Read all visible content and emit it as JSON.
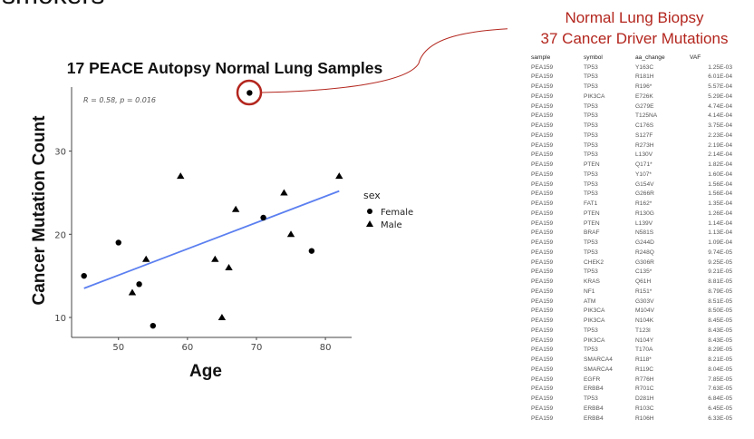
{
  "heading_partial": "smokers",
  "annotation": {
    "line1": "Normal Lung Biopsy",
    "line2": "37 Cancer Driver Mutations",
    "color": "#b3261e"
  },
  "chart_data": {
    "type": "scatter",
    "title": "17 PEACE Autopsy Normal Lung Samples",
    "xlabel": "Age",
    "ylabel": "Cancer Mutation Count",
    "xlim": [
      43.2,
      83.8
    ],
    "ylim": [
      7.6,
      37.7
    ],
    "xticks": [
      50,
      60,
      70,
      80
    ],
    "yticks": [
      10,
      20,
      30
    ],
    "grid": false,
    "stat_label": "R = 0.58, p = 0.016",
    "legend": {
      "title": "sex",
      "placement": "right"
    },
    "series": [
      {
        "name": "Female",
        "marker": "circle",
        "x": [
          45,
          50,
          53,
          55,
          69,
          71,
          78
        ],
        "y": [
          15,
          19,
          14,
          9,
          37,
          22,
          18
        ]
      },
      {
        "name": "Male",
        "marker": "triangle",
        "x": [
          52,
          54,
          59,
          64,
          65,
          66,
          67,
          74,
          75,
          82
        ],
        "y": [
          13,
          17,
          27,
          17,
          10,
          16,
          23,
          25,
          20,
          27
        ]
      }
    ],
    "fit_line": {
      "x": [
        45,
        82
      ],
      "y": [
        13.5,
        25.2
      ],
      "color": "#5b7ff0"
    },
    "highlighted_point": {
      "x": 69,
      "y": 37,
      "color": "#b3261e"
    }
  },
  "table": {
    "columns": [
      "sample",
      "symbol",
      "aa_change",
      "VAF"
    ],
    "rows": [
      [
        "PEA159",
        "TP53",
        "Y163C",
        "1.25E-03"
      ],
      [
        "PEA159",
        "TP53",
        "R181H",
        "6.01E-04"
      ],
      [
        "PEA159",
        "TP53",
        "R196*",
        "5.57E-04"
      ],
      [
        "PEA159",
        "PIK3CA",
        "E726K",
        "5.29E-04"
      ],
      [
        "PEA159",
        "TP53",
        "G279E",
        "4.74E-04"
      ],
      [
        "PEA159",
        "TP53",
        "T125NA",
        "4.14E-04"
      ],
      [
        "PEA159",
        "TP53",
        "C176S",
        "3.75E-04"
      ],
      [
        "PEA159",
        "TP53",
        "S127F",
        "2.23E-04"
      ],
      [
        "PEA159",
        "TP53",
        "R273H",
        "2.19E-04"
      ],
      [
        "PEA159",
        "TP53",
        "L130V",
        "2.14E-04"
      ],
      [
        "PEA159",
        "PTEN",
        "Q171*",
        "1.82E-04"
      ],
      [
        "PEA159",
        "TP53",
        "Y107*",
        "1.60E-04"
      ],
      [
        "PEA159",
        "TP53",
        "G154V",
        "1.56E-04"
      ],
      [
        "PEA159",
        "TP53",
        "G266R",
        "1.56E-04"
      ],
      [
        "PEA159",
        "FAT1",
        "R162*",
        "1.35E-04"
      ],
      [
        "PEA159",
        "PTEN",
        "R130G",
        "1.26E-04"
      ],
      [
        "PEA159",
        "PTEN",
        "L139V",
        "1.14E-04"
      ],
      [
        "PEA159",
        "BRAF",
        "N581S",
        "1.13E-04"
      ],
      [
        "PEA159",
        "TP53",
        "G244D",
        "1.09E-04"
      ],
      [
        "PEA159",
        "TP53",
        "R248Q",
        "9.74E-05"
      ],
      [
        "PEA159",
        "CHEK2",
        "G306R",
        "9.25E-05"
      ],
      [
        "PEA159",
        "TP53",
        "C135*",
        "9.21E-05"
      ],
      [
        "PEA159",
        "KRAS",
        "Q61H",
        "8.81E-05"
      ],
      [
        "PEA159",
        "NF1",
        "R151*",
        "8.79E-05"
      ],
      [
        "PEA159",
        "ATM",
        "G303V",
        "8.51E-05"
      ],
      [
        "PEA159",
        "PIK3CA",
        "M104V",
        "8.50E-05"
      ],
      [
        "PEA159",
        "PIK3CA",
        "N104K",
        "8.45E-05"
      ],
      [
        "PEA159",
        "TP53",
        "T123I",
        "8.43E-05"
      ],
      [
        "PEA159",
        "PIK3CA",
        "N104Y",
        "8.43E-05"
      ],
      [
        "PEA159",
        "TP53",
        "T170A",
        "8.29E-05"
      ],
      [
        "PEA159",
        "SMARCA4",
        "R118*",
        "8.21E-05"
      ],
      [
        "PEA159",
        "SMARCA4",
        "R119C",
        "8.04E-05"
      ],
      [
        "PEA159",
        "EGFR",
        "R776H",
        "7.85E-05"
      ],
      [
        "PEA159",
        "ERBB4",
        "R701C",
        "7.63E-05"
      ],
      [
        "PEA159",
        "TP53",
        "D281H",
        "6.84E-05"
      ],
      [
        "PEA159",
        "ERBB4",
        "R103C",
        "6.45E-05"
      ],
      [
        "PEA159",
        "ERBB4",
        "R106H",
        "6.33E-05"
      ]
    ]
  }
}
